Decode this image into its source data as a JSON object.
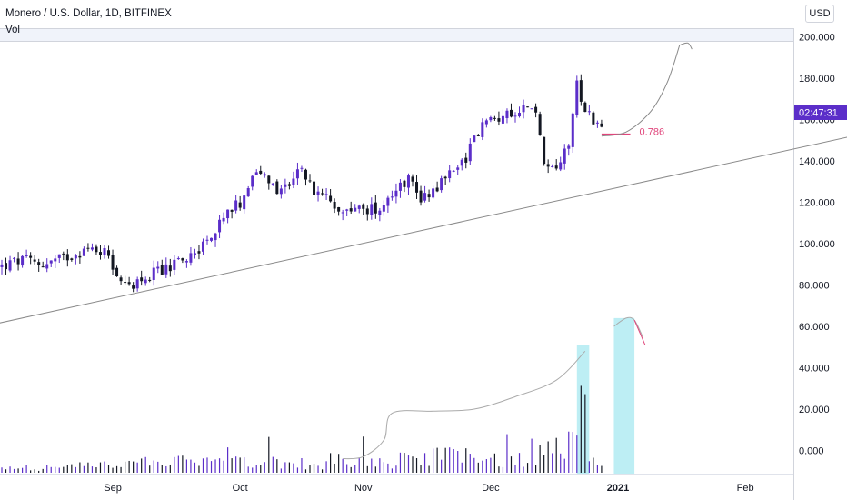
{
  "header": {
    "symbol_title": "Monero / U.S. Dollar, 1D, BITFINEX",
    "volume_label": "Vol",
    "currency_button": "USD"
  },
  "price_badge": {
    "text": "02:47:31",
    "color": "#5b2ec9"
  },
  "fib_label": {
    "text": "0.786",
    "color": "#e0457b"
  },
  "colors": {
    "up": "#5b2ec9",
    "down": "#131722",
    "trendline": "#8a8a8a",
    "highlight": "#b2ebf2",
    "fib_line": "#e0457b",
    "curve": "#888888"
  },
  "chart_data": {
    "type": "candlestick",
    "symbol": "XMR/USD",
    "interval": "1D",
    "exchange": "BITFINEX",
    "y_axis": {
      "ticks": [
        "200.000",
        "180.000",
        "160.000",
        "140.000",
        "120.000",
        "100.000",
        "80.000",
        "60.000",
        "40.000",
        "20.000",
        "0.000"
      ],
      "tick_values": [
        200,
        180,
        160,
        140,
        120,
        100,
        80,
        60,
        40,
        20,
        0
      ],
      "range": [
        -10,
        205
      ]
    },
    "x_axis": {
      "labels": [
        "Sep",
        "Oct",
        "Nov",
        "Dec",
        "2021",
        "Feb"
      ],
      "label_days": [
        27,
        58,
        88,
        119,
        150,
        181
      ]
    },
    "price_anchors": [
      [
        0,
        89
      ],
      [
        5,
        92
      ],
      [
        10,
        90
      ],
      [
        15,
        93
      ],
      [
        20,
        97
      ],
      [
        24,
        97
      ],
      [
        26,
        95
      ],
      [
        29,
        79
      ],
      [
        32,
        81
      ],
      [
        35,
        84
      ],
      [
        40,
        88
      ],
      [
        44,
        92
      ],
      [
        48,
        98
      ],
      [
        52,
        106
      ],
      [
        55,
        114
      ],
      [
        58,
        120
      ],
      [
        61,
        134
      ],
      [
        64,
        132
      ],
      [
        67,
        125
      ],
      [
        70,
        130
      ],
      [
        73,
        136
      ],
      [
        76,
        125
      ],
      [
        80,
        120
      ],
      [
        84,
        117
      ],
      [
        88,
        116
      ],
      [
        92,
        118
      ],
      [
        95,
        125
      ],
      [
        99,
        132
      ],
      [
        102,
        122
      ],
      [
        106,
        128
      ],
      [
        110,
        136
      ],
      [
        113,
        142
      ],
      [
        116,
        155
      ],
      [
        119,
        160
      ],
      [
        123,
        162
      ],
      [
        126,
        166
      ],
      [
        128,
        166
      ],
      [
        130,
        162
      ],
      [
        132,
        140
      ],
      [
        134,
        138
      ],
      [
        136,
        140
      ],
      [
        138,
        150
      ],
      [
        140,
        178
      ],
      [
        142,
        165
      ],
      [
        144,
        160
      ],
      [
        146,
        159
      ]
    ],
    "volume_anchors": [
      [
        0,
        2
      ],
      [
        20,
        3
      ],
      [
        40,
        5
      ],
      [
        60,
        6
      ],
      [
        80,
        4
      ],
      [
        90,
        5
      ],
      [
        110,
        8
      ],
      [
        120,
        6
      ],
      [
        130,
        8
      ],
      [
        135,
        10
      ],
      [
        140,
        14
      ],
      [
        142,
        22
      ],
      [
        144,
        8
      ],
      [
        146,
        5
      ]
    ],
    "trendline": {
      "from": [
        -2,
        61
      ],
      "to": [
        214,
        155
      ]
    },
    "fib_level": {
      "price": 153,
      "from_day": 146,
      "to_day": 153
    },
    "price_projection": [
      [
        146,
        152
      ],
      [
        152,
        154
      ],
      [
        158,
        164
      ],
      [
        162,
        178
      ],
      [
        165,
        196
      ]
    ],
    "price_projection_hook": [
      [
        165,
        196
      ],
      [
        167,
        197
      ],
      [
        168,
        194
      ]
    ],
    "volume_curve_1": [
      [
        83,
        -4
      ],
      [
        88,
        -3
      ],
      [
        93,
        5
      ],
      [
        95,
        18
      ],
      [
        105,
        19
      ],
      [
        115,
        20
      ],
      [
        125,
        26
      ],
      [
        135,
        34
      ],
      [
        142,
        48
      ]
    ],
    "volume_curve_2": [
      [
        149,
        60
      ],
      [
        152,
        64
      ],
      [
        154,
        63
      ],
      [
        156,
        55
      ]
    ],
    "volume_highlights": [
      {
        "from_day": 140,
        "to_day": 143,
        "top": 51
      },
      {
        "from_day": 149,
        "to_day": 154,
        "top": 64
      }
    ],
    "num_days": 147
  }
}
